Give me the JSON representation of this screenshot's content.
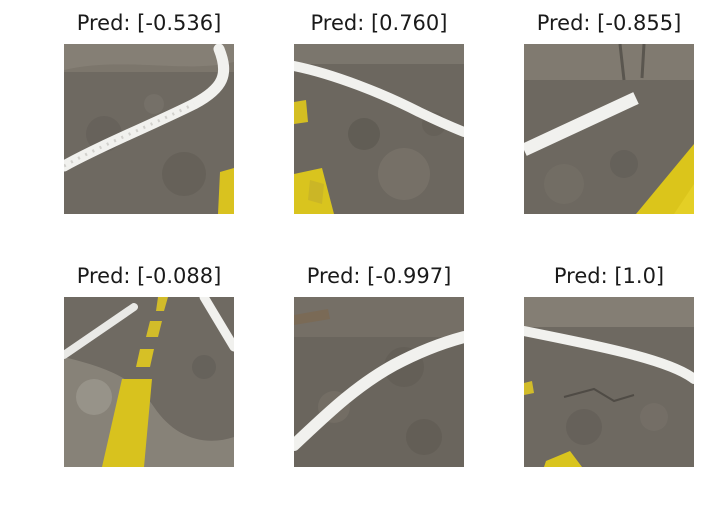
{
  "figure": {
    "panels": [
      {
        "title": "Pred: [-0.536]",
        "scene": "road-photo-curve-left"
      },
      {
        "title": "Pred: [0.760]",
        "scene": "road-photo-curve-right"
      },
      {
        "title": "Pred: [-0.855]",
        "scene": "road-photo-straight-left"
      },
      {
        "title": "Pred: [-0.088]",
        "scene": "road-photo-straight-yellow-center"
      },
      {
        "title": "Pred: [-0.997]",
        "scene": "road-photo-curve-left-low"
      },
      {
        "title": "Pred: [1.0]",
        "scene": "road-photo-curve-right-high"
      }
    ],
    "colors": {
      "asphalt": "#6b665e",
      "asphalt_dark": "#57534c",
      "white_line": "#f2f2f0",
      "yellow_line": "#d9c41e"
    }
  }
}
